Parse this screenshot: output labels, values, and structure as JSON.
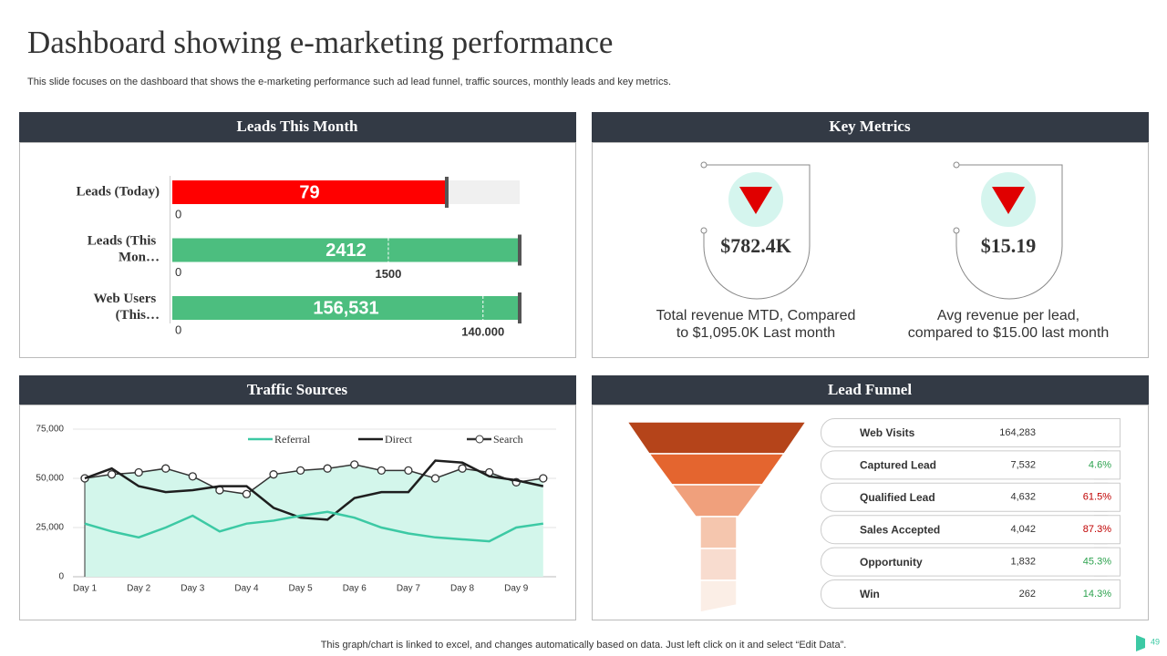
{
  "title": "Dashboard showing e-marketing performance",
  "subtitle": "This slide focuses on the dashboard that shows the e-marketing performance such ad lead funnel, traffic sources, monthly leads and key metrics.",
  "footer": "This graph/chart is linked to excel,  and changes automatically based on data. Just left click on it and select “Edit Data”.",
  "page_number": "49",
  "key_metrics": {
    "title": "Key Metrics",
    "items": [
      {
        "value": "$782.4K",
        "caption": [
          "Total revenue MTD, Compared",
          "to $1,095.0K Last month"
        ]
      },
      {
        "value": "$15.19",
        "caption": [
          "Avg revenue per lead,",
          "compared to $15.00 last month"
        ]
      }
    ]
  },
  "chart_data": [
    {
      "type": "bullet",
      "title": "Leads This Month",
      "categories": [
        "Leads (Today)",
        "Leads (This Mon…",
        "Web Users (This…"
      ],
      "values": [
        79,
        2412,
        156531
      ],
      "value_labels": [
        "79",
        "2412",
        "156,531"
      ],
      "ranges": [
        [
          0,
          100
        ],
        [
          0,
          2412
        ],
        [
          0,
          156531
        ]
      ],
      "targets": [
        null,
        1500,
        140000
      ],
      "target_labels": [
        null,
        "1500",
        "140.000"
      ],
      "colors": [
        "#ff0000",
        "#4cbe7f",
        "#4cbe7f"
      ]
    },
    {
      "type": "line",
      "title": "Traffic Sources",
      "x": [
        1,
        1.5,
        2,
        2.5,
        3,
        3.5,
        4,
        4.5,
        5,
        5.5,
        6,
        6.5,
        7,
        7.5,
        8,
        8.5,
        9,
        9.5
      ],
      "xlim": [
        0.78,
        9.74
      ],
      "xticks": [
        {
          "value": 1,
          "label": "Day 1"
        },
        {
          "value": 2,
          "label": "Day 2"
        },
        {
          "value": 3,
          "label": "Day 3"
        },
        {
          "value": 4,
          "label": "Day 4"
        },
        {
          "value": 5,
          "label": "Day 5"
        },
        {
          "value": 6,
          "label": "Day 6"
        },
        {
          "value": 7,
          "label": "Day 7"
        },
        {
          "value": 8,
          "label": "Day 8"
        },
        {
          "value": 9,
          "label": "Day 9"
        }
      ],
      "ylim": [
        0,
        75000
      ],
      "yticks": [
        0,
        {
          "value": 25000,
          "label": "25,000"
        },
        {
          "value": 50000,
          "label": "50,000"
        },
        {
          "value": 75000,
          "label": "75,000"
        }
      ],
      "grid": true,
      "legend": "top",
      "series": [
        {
          "name": "Search",
          "color": "#333333",
          "fill": "#d3f6eb",
          "area": true,
          "markers": true,
          "values": [
            50000,
            52000,
            53000,
            55000,
            51000,
            44000,
            42000,
            52000,
            54000,
            55000,
            57000,
            54000,
            54000,
            50000,
            55000,
            53000,
            48000,
            50000
          ]
        },
        {
          "name": "Direct",
          "color": "#1e1e1e",
          "values": [
            50000,
            55000,
            46000,
            43000,
            44000,
            46000,
            46000,
            35000,
            30000,
            29000,
            40000,
            43000,
            43000,
            59000,
            58000,
            51000,
            49000,
            46000
          ]
        },
        {
          "name": "Referral",
          "color": "#3cc9a4",
          "values": [
            27000,
            23000,
            20000,
            25000,
            31000,
            23000,
            27000,
            28500,
            31000,
            33000,
            30000,
            25000,
            22000,
            20000,
            19000,
            18000,
            25000,
            27000
          ]
        }
      ]
    },
    {
      "type": "funnel",
      "title": "Lead Funnel",
      "categories": [
        "Web Visits",
        "Captured Lead",
        "Qualified Lead",
        "Sales Accepted",
        "Opportunity",
        "Win"
      ],
      "values": [
        164283,
        7532,
        4632,
        4042,
        1832,
        262
      ],
      "value_labels": [
        "164,283",
        "7,532",
        "4,632",
        "4,042",
        "1,832",
        "262"
      ],
      "conversion": [
        null,
        4.6,
        61.5,
        87.3,
        45.3,
        14.3
      ],
      "conversion_labels": [
        null,
        "4.6%",
        "61.5%",
        "87.3%",
        "45.3%",
        "14.3%"
      ],
      "conversion_colors": [
        null,
        "#2ca24e",
        "#c00000",
        "#c00000",
        "#2ca24e",
        "#2ca24e"
      ],
      "colors": [
        "#b5441a",
        "#e4652f",
        "#f0a07c",
        "#f5c6ae",
        "#f8dccf",
        "#fbeee6"
      ]
    }
  ]
}
